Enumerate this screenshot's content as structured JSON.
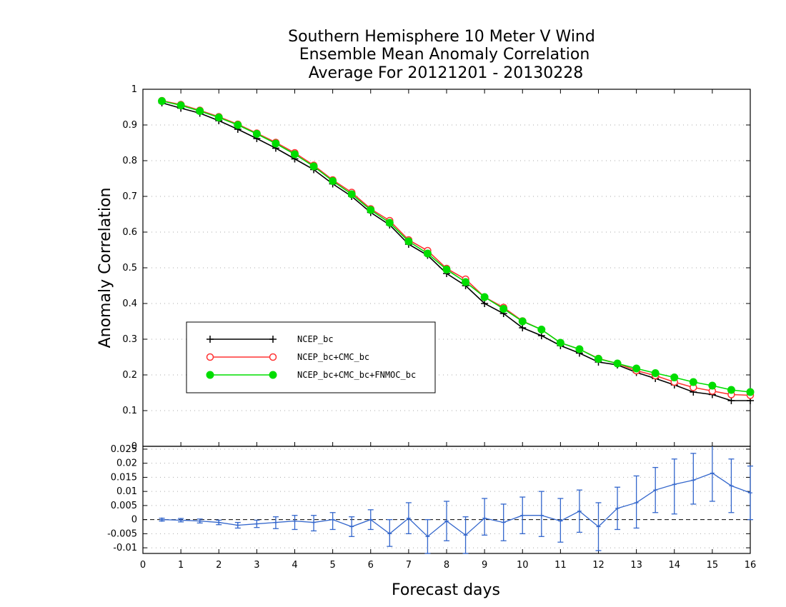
{
  "chart_data": [
    {
      "type": "line",
      "title_lines": [
        "Southern Hemisphere 10 Meter V Wind",
        "Ensemble Mean Anomaly Correlation",
        "Average For 20121201 - 20130228"
      ],
      "xlabel": "Forecast days",
      "ylabel": "Anomaly Correlation",
      "xlim": [
        0,
        16
      ],
      "ylim": [
        0,
        1
      ],
      "yticks": [
        "0",
        "0.1",
        "0.2",
        "0.3",
        "0.4",
        "0.5",
        "0.6",
        "0.7",
        "0.8",
        "0.9",
        "1"
      ],
      "grid": true,
      "legend_position": "center-left",
      "x": [
        0.5,
        1,
        1.5,
        2,
        2.5,
        3,
        3.5,
        4,
        4.5,
        5,
        5.5,
        6,
        6.5,
        7,
        7.5,
        8,
        8.5,
        9,
        9.5,
        10,
        10.5,
        11,
        11.5,
        12,
        12.5,
        13,
        13.5,
        14,
        14.5,
        15,
        15.5,
        16
      ],
      "series": [
        {
          "name": "NCEP_bc",
          "color": "#000000",
          "marker": "plus",
          "values": [
            0.962,
            0.947,
            0.933,
            0.912,
            0.888,
            0.862,
            0.835,
            0.805,
            0.775,
            0.735,
            0.7,
            0.655,
            0.62,
            0.566,
            0.535,
            0.484,
            0.45,
            0.4,
            0.372,
            0.332,
            0.31,
            0.282,
            0.261,
            0.236,
            0.228,
            0.207,
            0.19,
            0.172,
            0.152,
            0.145,
            0.128,
            0.128
          ]
        },
        {
          "name": "NCEP_bc+CMC_bc",
          "color": "#ff3333",
          "marker": "open-circle",
          "values": [
            0.968,
            0.957,
            0.941,
            0.923,
            0.902,
            0.877,
            0.851,
            0.822,
            0.787,
            0.746,
            0.711,
            0.665,
            0.632,
            0.578,
            0.548,
            0.498,
            0.468,
            0.418,
            0.389,
            0.351,
            0.327,
            0.29,
            0.272,
            0.246,
            0.232,
            0.212,
            0.198,
            0.18,
            0.165,
            0.155,
            0.145,
            0.143
          ]
        },
        {
          "name": "NCEP_bc+CMC_bc+FNMOC_bc",
          "color": "#00dd00",
          "marker": "filled-circle",
          "values": [
            0.967,
            0.955,
            0.939,
            0.921,
            0.9,
            0.875,
            0.848,
            0.818,
            0.784,
            0.743,
            0.706,
            0.662,
            0.626,
            0.574,
            0.54,
            0.495,
            0.46,
            0.418,
            0.385,
            0.35,
            0.327,
            0.29,
            0.272,
            0.245,
            0.232,
            0.218,
            0.205,
            0.193,
            0.18,
            0.17,
            0.158,
            0.152
          ]
        }
      ]
    },
    {
      "type": "line",
      "xlim": [
        0,
        16
      ],
      "ylim": [
        -0.012,
        0.026
      ],
      "yticks": [
        "-0.01",
        "-0.005",
        "0",
        "0.005",
        "0.01",
        "0.015",
        "0.02",
        "0.025"
      ],
      "xticks": [
        "0",
        "1",
        "2",
        "3",
        "4",
        "5",
        "6",
        "7",
        "8",
        "9",
        "10",
        "11",
        "12",
        "13",
        "14",
        "15",
        "16"
      ],
      "grid": true,
      "x": [
        0.5,
        1,
        1.5,
        2,
        2.5,
        3,
        3.5,
        4,
        4.5,
        5,
        5.5,
        6,
        6.5,
        7,
        7.5,
        8,
        8.5,
        9,
        9.5,
        10,
        10.5,
        11,
        11.5,
        12,
        12.5,
        13,
        13.5,
        14,
        14.5,
        15,
        15.5,
        16
      ],
      "series": [
        {
          "color": "#3366cc",
          "values": [
            0.0,
            -0.0002,
            -0.0005,
            -0.001,
            -0.002,
            -0.0015,
            -0.001,
            -0.0005,
            -0.001,
            0.0,
            -0.0025,
            0.0,
            -0.005,
            0.0005,
            -0.006,
            -0.0005,
            -0.0055,
            0.0005,
            -0.001,
            0.0015,
            0.0015,
            -0.0005,
            0.003,
            -0.0025,
            0.004,
            0.006,
            0.0105,
            0.0125,
            0.014,
            0.0165,
            0.012,
            0.0095
          ],
          "err_low": [
            -0.0005,
            -0.0008,
            -0.0012,
            -0.0018,
            -0.003,
            -0.0028,
            -0.0032,
            -0.0035,
            -0.004,
            -0.0035,
            -0.006,
            -0.0035,
            -0.0095,
            -0.005,
            -0.012,
            -0.0075,
            -0.012,
            -0.0055,
            -0.0075,
            -0.005,
            -0.006,
            -0.008,
            -0.0045,
            -0.011,
            -0.0035,
            -0.003,
            0.0025,
            0.002,
            0.0055,
            0.0065,
            0.0025,
            0.0
          ],
          "err_high": [
            0.0005,
            0.0004,
            0.0002,
            -0.0002,
            -0.001,
            -0.0002,
            0.001,
            0.0015,
            0.0015,
            0.0025,
            0.001,
            0.0035,
            0.0,
            0.006,
            0.0,
            0.0065,
            0.001,
            0.0075,
            0.0055,
            0.008,
            0.01,
            0.0075,
            0.0105,
            0.006,
            0.0115,
            0.0155,
            0.0185,
            0.0215,
            0.0235,
            0.0265,
            0.0215,
            0.019
          ]
        }
      ]
    }
  ]
}
